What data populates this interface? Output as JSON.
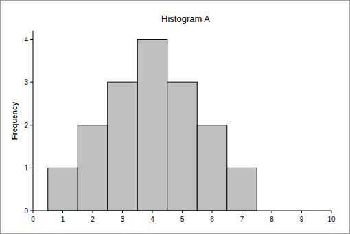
{
  "chart_data": {
    "type": "histogram",
    "title": "Histogram A",
    "y_label": "Frequency",
    "bins": [
      0.5,
      1.5,
      2.5,
      3.5,
      4.5,
      5.5,
      6.5,
      7.5
    ],
    "values": [
      1,
      2,
      3,
      4,
      3,
      2,
      1
    ],
    "color": "#c0c0c0",
    "xlim": [
      0,
      10
    ],
    "xticks": [
      0,
      1,
      2,
      3,
      4,
      5,
      6,
      7,
      8,
      9,
      10
    ],
    "ylim": [
      0,
      4.2
    ],
    "yticks": [
      0,
      1,
      2,
      3,
      4
    ],
    "grid": false
  }
}
